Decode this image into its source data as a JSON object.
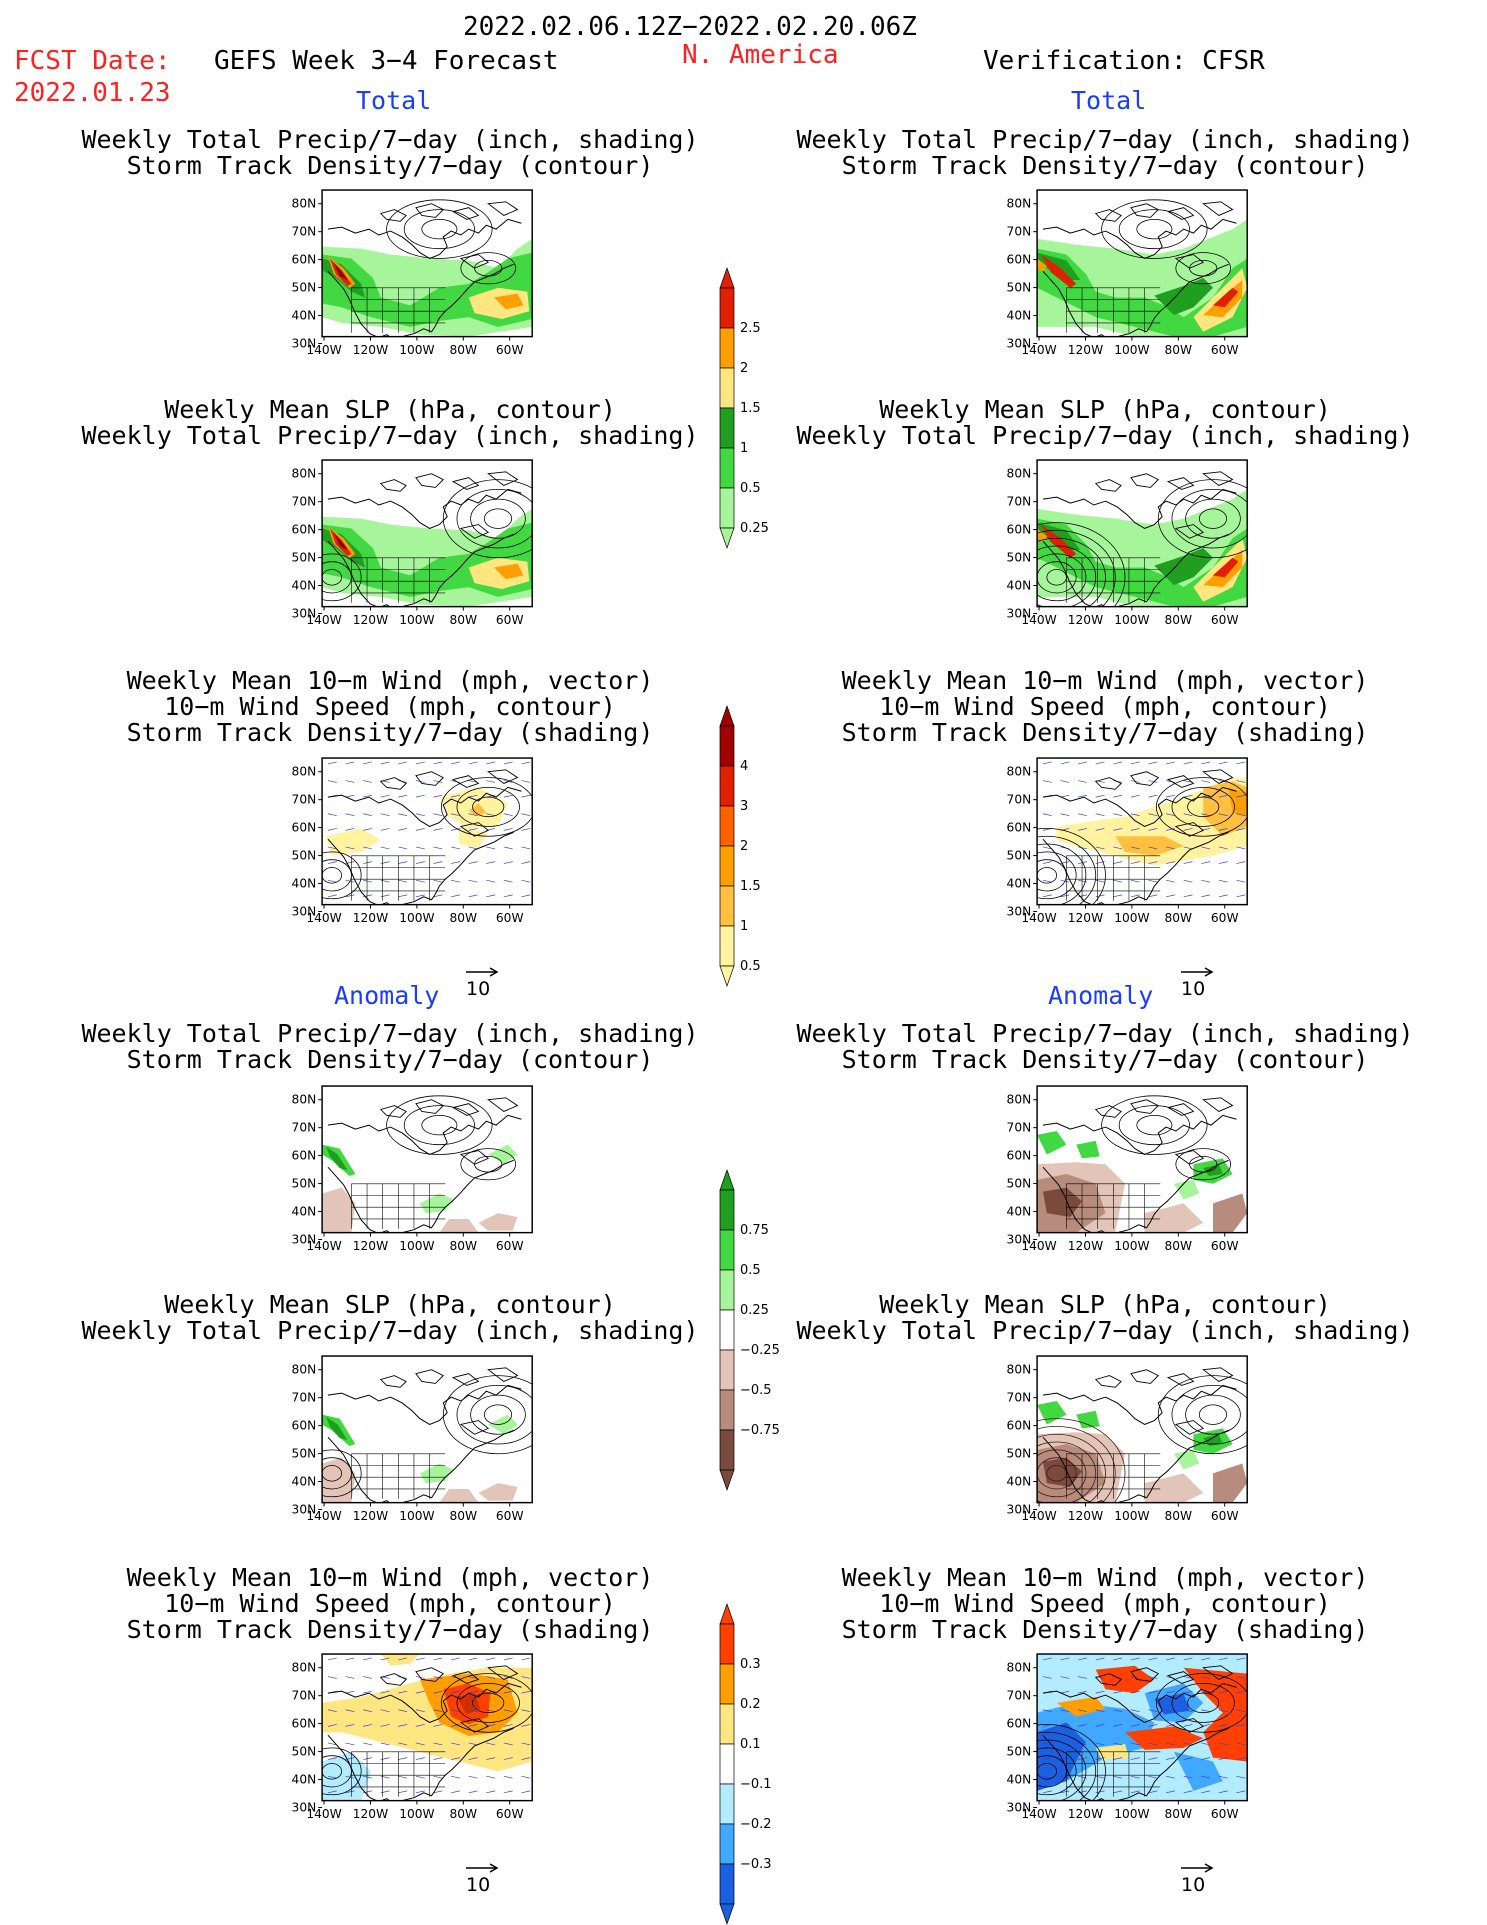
{
  "header": {
    "date_range": "2022.02.06.12Z−2022.02.20.06Z",
    "fcst_label": "FCST Date:",
    "fcst_date": "2022.01.23",
    "product": "GEFS Week 3−4 Forecast",
    "region": "N. America",
    "verification": "Verification: CFSR"
  },
  "sections": {
    "total": "Total",
    "anomaly": "Anomaly"
  },
  "titles": {
    "precip_track": [
      "Weekly Total Precip/7−day (inch, shading)",
      "Storm Track Density/7−day (contour)"
    ],
    "slp_precip": [
      "Weekly Mean SLP (hPa, contour)",
      "Weekly Total Precip/7−day (inch, shading)"
    ],
    "wind_track": [
      "Weekly Mean 10−m Wind (mph, vector)",
      "10−m Wind Speed (mph, contour)",
      "Storm Track Density/7−day (shading)"
    ]
  },
  "axes": {
    "lat_labels": [
      "80N",
      "70N",
      "60N",
      "50N",
      "40N",
      "30N"
    ],
    "lon_labels": [
      "140W",
      "120W",
      "100W",
      "80W",
      "60W"
    ]
  },
  "vector_ref": "10",
  "colorbars": {
    "precip_total": {
      "labels": [
        "2.5",
        "2",
        "1.5",
        "1",
        "0.5",
        "0.25"
      ],
      "colors": [
        "#e02000",
        "#ff9e00",
        "#ffe680",
        "#1f9e1f",
        "#41d841",
        "#a7f59b"
      ]
    },
    "track_total": {
      "labels": [
        "4",
        "3",
        "2",
        "1.5",
        "1",
        "0.5"
      ],
      "colors": [
        "#a00000",
        "#e02000",
        "#ff6000",
        "#ff9e00",
        "#ffc040",
        "#fff3a0"
      ]
    },
    "precip_anom": {
      "labels": [
        "0.75",
        "0.5",
        "0.25",
        "−0.25",
        "−0.5",
        "−0.75"
      ],
      "colors": [
        "#1f9e1f",
        "#41d841",
        "#a7f59b",
        "#ffffff",
        "#e3c4b8",
        "#b88c7c",
        "#7a4a3c"
      ]
    },
    "track_anom": {
      "labels": [
        "0.3",
        "0.2",
        "0.1",
        "−0.1",
        "−0.2",
        "−0.3"
      ],
      "colors": [
        "#ff4000",
        "#ff9e00",
        "#ffe680",
        "#ffffff",
        "#b4ecff",
        "#40a8ff",
        "#1a60e0"
      ]
    }
  },
  "colors": {
    "header_red": "#ff2020",
    "section_blue": "#1a3cff"
  }
}
